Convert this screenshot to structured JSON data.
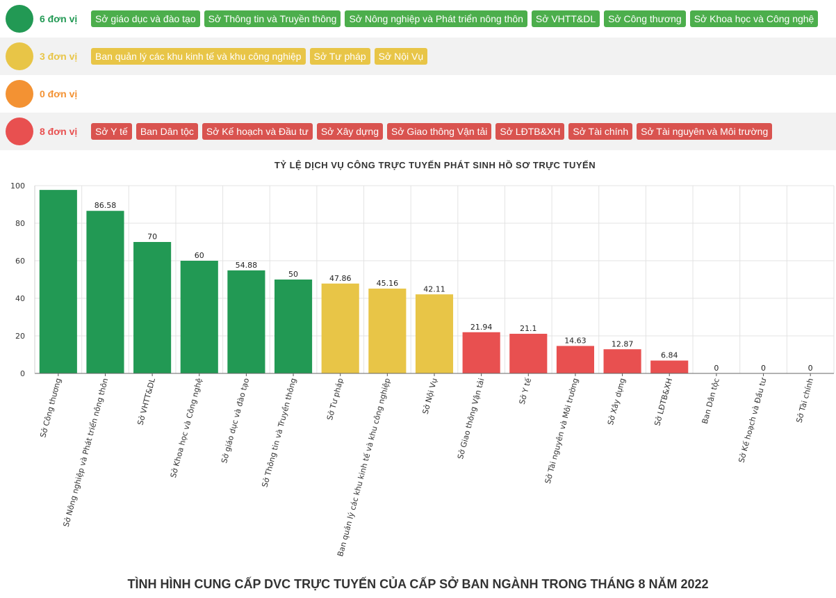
{
  "legend": {
    "rows": [
      {
        "label": "6 đơn vị",
        "color": "#229954",
        "tag_color": "#4cae4c",
        "tags": [
          "Sở giáo dục và đào tạo",
          "Sở Thông tin và Truyền thông",
          "Sở Nông nghiệp và Phát triển nông thôn",
          "Sở VHTT&DL",
          "Sở Công thương",
          "Sở Khoa học và Công nghệ"
        ]
      },
      {
        "label": "3 đơn vị",
        "color": "#e8c547",
        "tag_color": "#e8c547",
        "tags": [
          "Ban quản lý các khu kinh tế và khu công nghiệp",
          "Sở Tư pháp",
          "Sở Nội Vụ"
        ]
      },
      {
        "label": "0 đơn vị",
        "color": "#f39233",
        "tag_color": "#f39233",
        "tags": []
      },
      {
        "label": "8 đơn vị",
        "color": "#e85050",
        "tag_color": "#d9534f",
        "tags": [
          "Sở Y tế",
          "Ban Dân tộc",
          "Sở Kế hoạch và Đầu tư",
          "Sở Xây dựng",
          "Sở Giao thông Vận tải",
          "Sở LĐTB&XH",
          "Sở Tài chính",
          "Sở Tài nguyên và Môi trường"
        ]
      }
    ]
  },
  "chart_data": {
    "type": "bar",
    "title": "TỶ LỆ DỊCH VỤ CÔNG TRỰC TUYẾN PHÁT SINH HỒ SƠ TRỰC TUYẾN",
    "xlabel": "",
    "ylabel": "",
    "ylim": [
      0,
      100
    ],
    "yticks": [
      0,
      20,
      40,
      60,
      80,
      100
    ],
    "grid": true,
    "categories": [
      "Sở Công thương",
      "Sở Nông nghiệp và Phát triển nông thôn",
      "Sở VHTT&DL",
      "Sở Khoa học và Công nghệ",
      "Sở giáo dục và đào tạo",
      "Sở Thông tin và Truyền thông",
      "Sở Tư pháp",
      "Ban quản lý các khu kinh tế và khu công nghiệp",
      "Sở Nội Vụ",
      "Sở Giao thông Vận tải",
      "Sở Y tế",
      "Sở Tài nguyên và Môi trường",
      "Sở Xây dựng",
      "Sở LĐTB&XH",
      "Ban Dân tộc",
      "Sở Kế hoạch và Đầu tư",
      "Sở Tài chính"
    ],
    "values": [
      97.73,
      86.58,
      70,
      60,
      54.88,
      50,
      47.86,
      45.16,
      42.11,
      21.94,
      21.1,
      14.63,
      12.87,
      6.84,
      0,
      0,
      0
    ],
    "value_labels": [
      "",
      "86.58",
      "70",
      "60",
      "54.88",
      "50",
      "47.86",
      "45.16",
      "42.11",
      "21.94",
      "21.1",
      "14.63",
      "12.87",
      "6.84",
      "0",
      "0",
      "0"
    ],
    "bar_colors": [
      "#229954",
      "#229954",
      "#229954",
      "#229954",
      "#229954",
      "#229954",
      "#e8c547",
      "#e8c547",
      "#e8c547",
      "#e85050",
      "#e85050",
      "#e85050",
      "#e85050",
      "#e85050",
      "#e85050",
      "#e85050",
      "#e85050"
    ]
  },
  "footer": {
    "title": "TÌNH HÌNH CUNG CẤP DVC TRỰC TUYẾN CỦA CẤP SỞ BAN NGÀNH TRONG THÁNG 8 NĂM 2022"
  }
}
